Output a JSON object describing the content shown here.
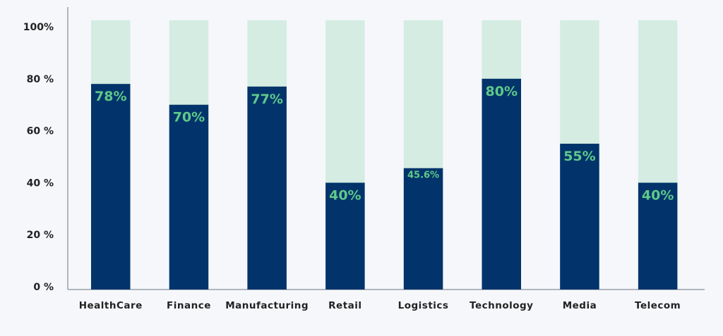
{
  "chart_data": {
    "type": "bar",
    "stacked": true,
    "title": "",
    "xlabel": "",
    "ylabel": "",
    "ylim": [
      0,
      100
    ],
    "grid": false,
    "categories": [
      "HealthCare",
      "Finance",
      "Manufacturing",
      "Retail",
      "Logistics",
      "Technology",
      "Media",
      "Telecom"
    ],
    "values": [
      78,
      70,
      77,
      40,
      45.6,
      80,
      55,
      40
    ],
    "data_labels": [
      "78%",
      "70%",
      "77%",
      "40%",
      "45.6%",
      "80%",
      "55%",
      "40%"
    ],
    "yticks": [
      {
        "value": 0,
        "label": "0 %"
      },
      {
        "value": 20,
        "label": "20 %"
      },
      {
        "value": 40,
        "label": "40 %"
      },
      {
        "value": 60,
        "label": "60 %"
      },
      {
        "value": 80,
        "label": "80 %"
      },
      {
        "value": 100,
        "label": "100%"
      }
    ],
    "colors": {
      "value": "#02346b",
      "remainder": "#d4ece2",
      "label": "#5fc98a",
      "background": "#f5f7fb"
    }
  }
}
